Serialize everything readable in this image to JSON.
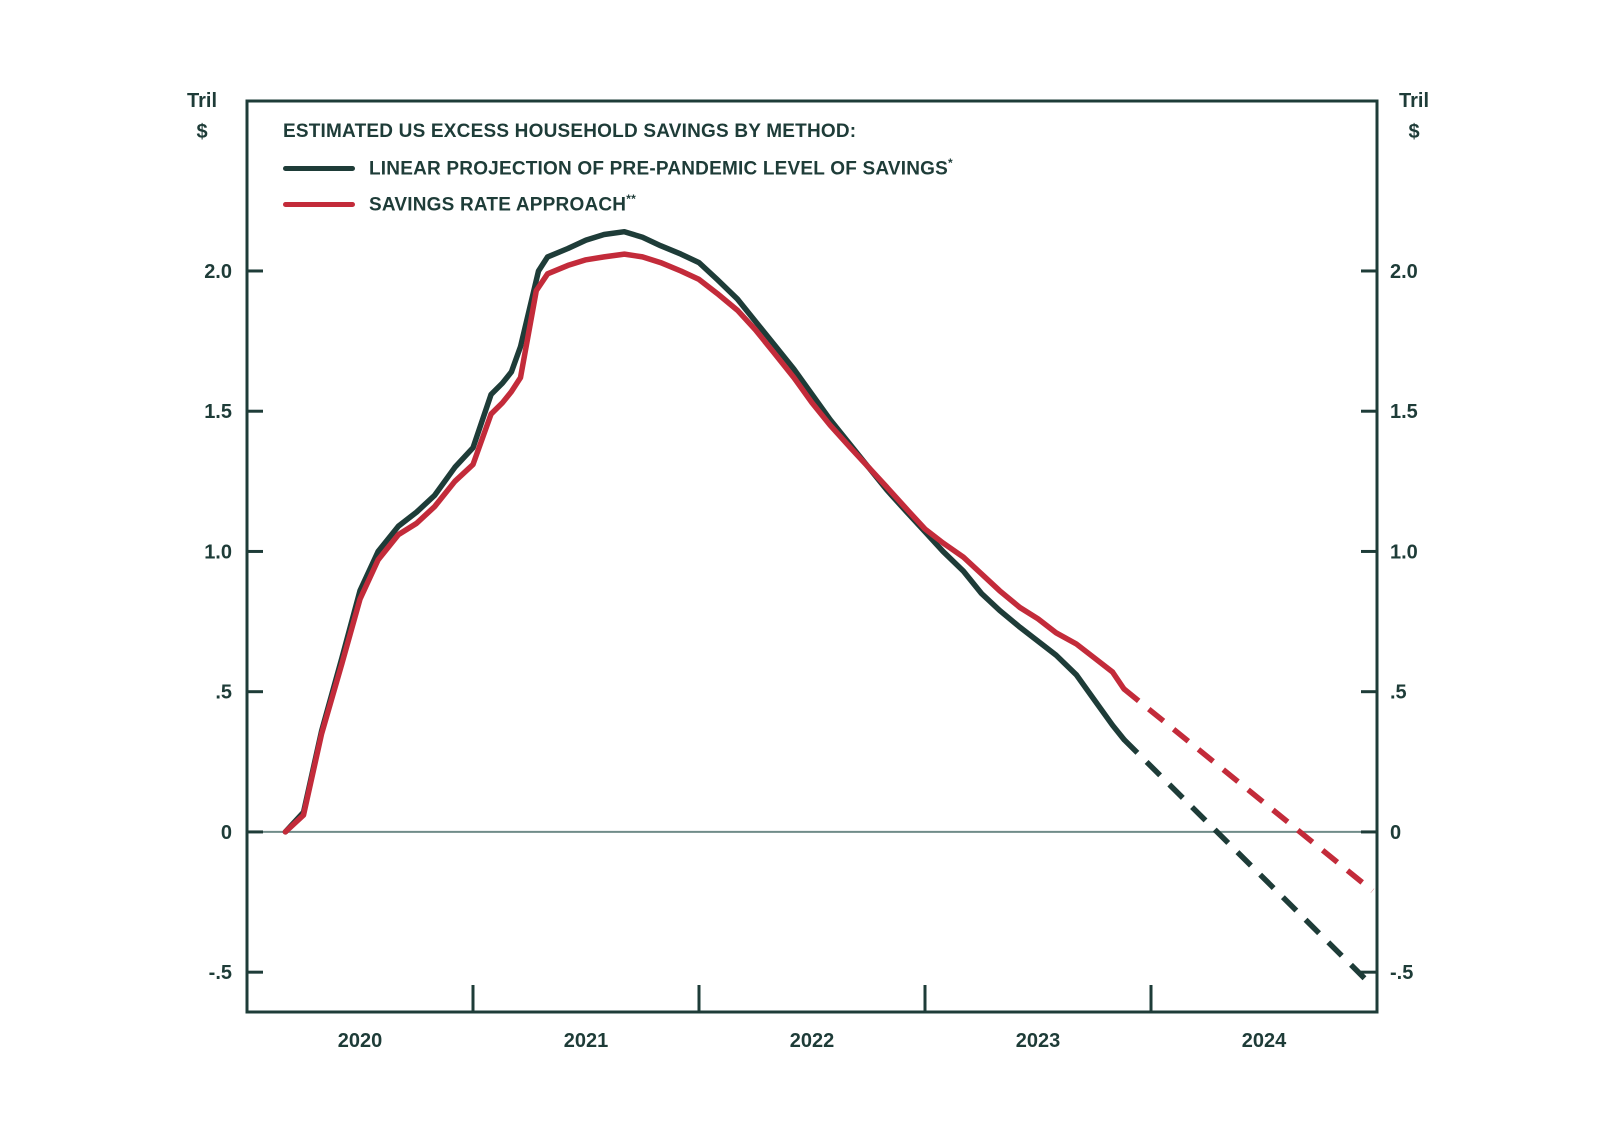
{
  "page": {
    "background": "#ffffff"
  },
  "chart_data": {
    "type": "line",
    "title": "ESTIMATED US EXCESS HOUSEHOLD SAVINGS BY METHOD:",
    "unit": {
      "line1": "Tril",
      "line2": "$"
    },
    "colors": {
      "dark": "#1e3c38",
      "red": "#c32b3a",
      "axis": "#1e3c38",
      "zero_line": "#708c89",
      "text": "#1e3c38"
    },
    "xlim": [
      2020,
      2025
    ],
    "ylim": [
      -0.642,
      2.606
    ],
    "grid": "zero-line-only",
    "legend_position": "top-left-inside",
    "x_boundary_ticks": [
      2021,
      2022,
      2023,
      2024
    ],
    "x_year_labels": [
      {
        "label": "2020",
        "t": 2020.5
      },
      {
        "label": "2021",
        "t": 2021.5
      },
      {
        "label": "2022",
        "t": 2022.5
      },
      {
        "label": "2023",
        "t": 2023.5
      },
      {
        "label": "2024",
        "t": 2024.5
      }
    ],
    "y_ticks": [
      {
        "value": 2.0,
        "label": "2.0"
      },
      {
        "value": 1.5,
        "label": "1.5"
      },
      {
        "value": 1.0,
        "label": "1.0"
      },
      {
        "value": 0.5,
        "label": ".5"
      },
      {
        "value": 0.0,
        "label": "0"
      },
      {
        "value": -0.5,
        "label": "-.5"
      }
    ],
    "series": [
      {
        "name": "LINEAR PROJECTION OF PRE-PANDEMIC LEVEL OF SAVINGS",
        "footnote_marker": "*",
        "color_key": "dark",
        "solid": [
          [
            2020.17,
            0.0
          ],
          [
            2020.25,
            0.07
          ],
          [
            2020.33,
            0.36
          ],
          [
            2020.42,
            0.62
          ],
          [
            2020.5,
            0.86
          ],
          [
            2020.58,
            1.0
          ],
          [
            2020.67,
            1.09
          ],
          [
            2020.75,
            1.14
          ],
          [
            2020.83,
            1.2
          ],
          [
            2020.92,
            1.3
          ],
          [
            2021.0,
            1.37
          ],
          [
            2021.08,
            1.56
          ],
          [
            2021.13,
            1.6
          ],
          [
            2021.17,
            1.64
          ],
          [
            2021.21,
            1.73
          ],
          [
            2021.29,
            2.0
          ],
          [
            2021.33,
            2.05
          ],
          [
            2021.42,
            2.08
          ],
          [
            2021.5,
            2.11
          ],
          [
            2021.58,
            2.13
          ],
          [
            2021.67,
            2.14
          ],
          [
            2021.75,
            2.12
          ],
          [
            2021.83,
            2.09
          ],
          [
            2021.92,
            2.06
          ],
          [
            2022.0,
            2.03
          ],
          [
            2022.08,
            1.97
          ],
          [
            2022.17,
            1.9
          ],
          [
            2022.25,
            1.82
          ],
          [
            2022.33,
            1.74
          ],
          [
            2022.42,
            1.65
          ],
          [
            2022.5,
            1.56
          ],
          [
            2022.58,
            1.47
          ],
          [
            2022.67,
            1.38
          ],
          [
            2022.75,
            1.3
          ],
          [
            2022.83,
            1.22
          ],
          [
            2022.92,
            1.14
          ],
          [
            2023.0,
            1.07
          ],
          [
            2023.08,
            1.0
          ],
          [
            2023.17,
            0.93
          ],
          [
            2023.25,
            0.85
          ],
          [
            2023.33,
            0.79
          ],
          [
            2023.42,
            0.73
          ],
          [
            2023.5,
            0.68
          ],
          [
            2023.58,
            0.63
          ],
          [
            2023.67,
            0.56
          ],
          [
            2023.75,
            0.47
          ],
          [
            2023.83,
            0.38
          ],
          [
            2023.88,
            0.33
          ]
        ],
        "dashed": [
          [
            2023.88,
            0.33
          ],
          [
            2024.98,
            -0.55
          ]
        ]
      },
      {
        "name": "SAVINGS RATE APPROACH",
        "footnote_marker": "**",
        "color_key": "red",
        "solid": [
          [
            2020.17,
            0.0
          ],
          [
            2020.25,
            0.06
          ],
          [
            2020.33,
            0.35
          ],
          [
            2020.42,
            0.6
          ],
          [
            2020.5,
            0.83
          ],
          [
            2020.58,
            0.97
          ],
          [
            2020.67,
            1.06
          ],
          [
            2020.75,
            1.1
          ],
          [
            2020.83,
            1.16
          ],
          [
            2020.92,
            1.25
          ],
          [
            2021.0,
            1.31
          ],
          [
            2021.08,
            1.49
          ],
          [
            2021.13,
            1.53
          ],
          [
            2021.17,
            1.57
          ],
          [
            2021.21,
            1.62
          ],
          [
            2021.28,
            1.93
          ],
          [
            2021.33,
            1.99
          ],
          [
            2021.42,
            2.02
          ],
          [
            2021.5,
            2.04
          ],
          [
            2021.58,
            2.05
          ],
          [
            2021.67,
            2.06
          ],
          [
            2021.75,
            2.05
          ],
          [
            2021.83,
            2.03
          ],
          [
            2021.92,
            2.0
          ],
          [
            2022.0,
            1.97
          ],
          [
            2022.08,
            1.92
          ],
          [
            2022.17,
            1.86
          ],
          [
            2022.25,
            1.79
          ],
          [
            2022.33,
            1.71
          ],
          [
            2022.42,
            1.62
          ],
          [
            2022.5,
            1.53
          ],
          [
            2022.58,
            1.45
          ],
          [
            2022.67,
            1.37
          ],
          [
            2022.75,
            1.3
          ],
          [
            2022.83,
            1.23
          ],
          [
            2022.92,
            1.15
          ],
          [
            2023.0,
            1.08
          ],
          [
            2023.08,
            1.03
          ],
          [
            2023.17,
            0.98
          ],
          [
            2023.25,
            0.92
          ],
          [
            2023.33,
            0.86
          ],
          [
            2023.42,
            0.8
          ],
          [
            2023.5,
            0.76
          ],
          [
            2023.58,
            0.71
          ],
          [
            2023.67,
            0.67
          ],
          [
            2023.75,
            0.62
          ],
          [
            2023.83,
            0.57
          ],
          [
            2023.88,
            0.51
          ]
        ],
        "dashed": [
          [
            2023.88,
            0.51
          ],
          [
            2024.98,
            -0.21
          ]
        ]
      }
    ]
  }
}
